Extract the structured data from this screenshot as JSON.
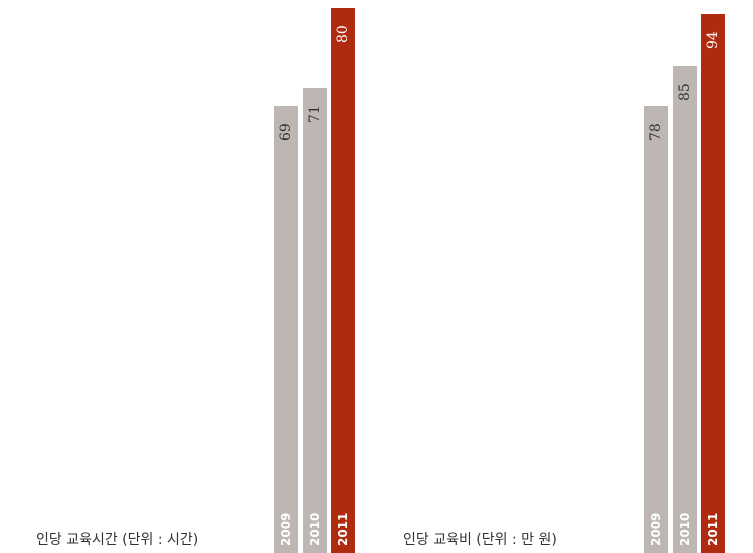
{
  "colors": {
    "muted": "#bdb6b3",
    "accent": "#b02a10",
    "value_on_accent": "#ffffff",
    "value_on_muted": "#333333"
  },
  "chart_data": [
    {
      "type": "bar",
      "caption": "인당 교육시간 (단위 : 시간)",
      "categories": [
        "2009",
        "2010",
        "2011"
      ],
      "values": [
        69,
        71,
        80
      ],
      "highlight": "2011",
      "title": "",
      "xlabel": "",
      "ylabel": ""
    },
    {
      "type": "bar",
      "caption": "인당 교육비 (단위 : 만 원)",
      "categories": [
        "2009",
        "2010",
        "2011"
      ],
      "values": [
        78,
        85,
        94
      ],
      "highlight": "2011",
      "title": "",
      "xlabel": "",
      "ylabel": ""
    }
  ]
}
